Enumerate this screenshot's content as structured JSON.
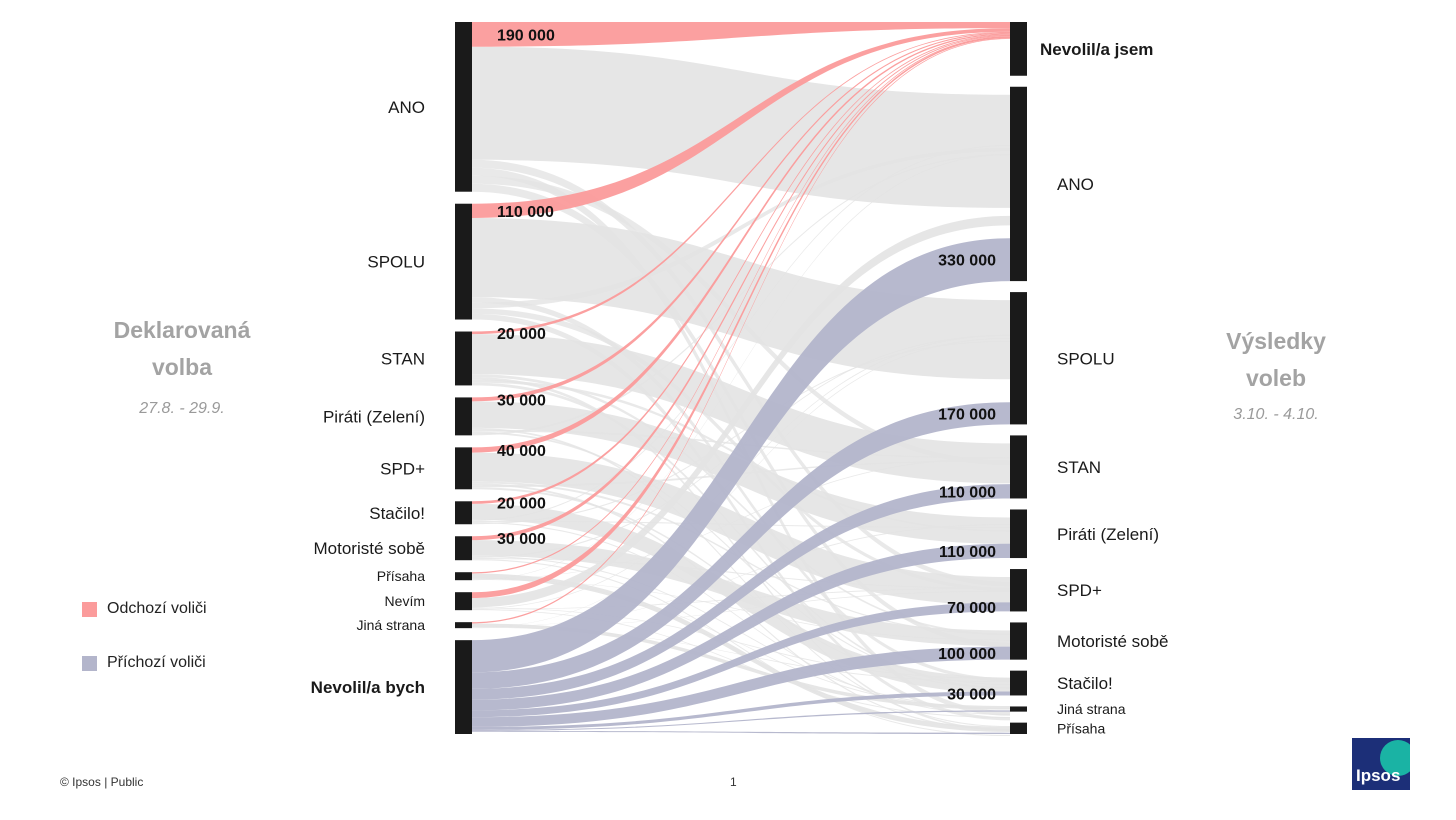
{
  "left_panel": {
    "title_line1": "Deklarovaná",
    "title_line2": "volba",
    "date": "27.8. - 29.9."
  },
  "right_panel": {
    "title_line1": "Výsledky",
    "title_line2": "voleb",
    "date": "3.10. - 4.10."
  },
  "legend": {
    "outgoing": "Odchozí voliči",
    "incoming": "Příchozí voliči"
  },
  "footer": {
    "copyright": "© Ipsos | Public",
    "page": "1"
  },
  "logo_text": "Ipsos",
  "colors": {
    "outgoing": "#fb9b9b",
    "incoming": "#b3b5cb",
    "neutral": "#e3e3e3",
    "node": "#1a1a1a",
    "muted_title": "#a3a3a3"
  },
  "chart_data": {
    "type": "sankey",
    "left_nodes": [
      {
        "label": "ANO",
        "value": 850
      },
      {
        "label": "SPOLU",
        "value": 580
      },
      {
        "label": "STAN",
        "value": 270
      },
      {
        "label": "Piráti (Zelení)",
        "value": 190
      },
      {
        "label": "SPD+",
        "value": 210
      },
      {
        "label": "Stačilo!",
        "value": 115
      },
      {
        "label": "Motoristé sobě",
        "value": 120
      },
      {
        "label": "Přísaha",
        "value": 40
      },
      {
        "label": "Nevím",
        "value": 90
      },
      {
        "label": "Jiná strana",
        "value": 30
      },
      {
        "label": "Nevolil/a bych",
        "value": 470,
        "bold": true
      }
    ],
    "right_nodes": [
      {
        "label": "Nevolil/a jsem",
        "value": 260,
        "bold": true
      },
      {
        "label": "ANO",
        "value": 940
      },
      {
        "label": "SPOLU",
        "value": 640
      },
      {
        "label": "STAN",
        "value": 305
      },
      {
        "label": "Piráti (Zelení)",
        "value": 235
      },
      {
        "label": "SPD+",
        "value": 205
      },
      {
        "label": "Motoristé sobě",
        "value": 180
      },
      {
        "label": "Stačilo!",
        "value": 120
      },
      {
        "label": "Jiná strana",
        "value": 25
      },
      {
        "label": "Přísaha",
        "value": 55
      }
    ],
    "outgoing_labels": [
      "190 000",
      "110 000",
      "20 000",
      "30 000",
      "40 000",
      "20 000",
      "30 000"
    ],
    "incoming_labels": [
      "330 000",
      "170 000",
      "110 000",
      "110 000",
      "70 000",
      "100 000",
      "30 000"
    ],
    "outgoing_flows": [
      {
        "from": "ANO",
        "to": "Nevolil/a jsem",
        "value": 190000,
        "label": "190 000"
      },
      {
        "from": "SPOLU",
        "to": "Nevolil/a jsem",
        "value": 110000,
        "label": "110 000"
      },
      {
        "from": "STAN",
        "to": "Nevolil/a jsem",
        "value": 20000,
        "label": "20 000"
      },
      {
        "from": "Piráti (Zelení)",
        "to": "Nevolil/a jsem",
        "value": 30000,
        "label": "30 000"
      },
      {
        "from": "SPD+",
        "to": "Nevolil/a jsem",
        "value": 40000,
        "label": "40 000"
      },
      {
        "from": "Stačilo!",
        "to": "Nevolil/a jsem",
        "value": 20000,
        "label": "20 000"
      },
      {
        "from": "Motoristé sobě",
        "to": "Nevolil/a jsem",
        "value": 30000,
        "label": "30 000"
      },
      {
        "from": "Přísaha",
        "to": "Nevolil/a jsem",
        "value": 5000
      },
      {
        "from": "Nevím",
        "to": "Nevolil/a jsem",
        "value": 45000
      },
      {
        "from": "Jiná strana",
        "to": "Nevolil/a jsem",
        "value": 5000
      }
    ],
    "incoming_flows": [
      {
        "from": "Nevolil/a bych",
        "to": "ANO",
        "value": 330000,
        "label": "330 000"
      },
      {
        "from": "Nevolil/a bych",
        "to": "SPOLU",
        "value": 170000,
        "label": "170 000"
      },
      {
        "from": "Nevolil/a bych",
        "to": "STAN",
        "value": 110000,
        "label": "110 000"
      },
      {
        "from": "Nevolil/a bych",
        "to": "Piráti (Zelení)",
        "value": 110000,
        "label": "110 000"
      },
      {
        "from": "Nevolil/a bych",
        "to": "SPD+",
        "value": 70000,
        "label": "70 000"
      },
      {
        "from": "Nevolil/a bych",
        "to": "Motoristé sobě",
        "value": 100000,
        "label": "100 000"
      },
      {
        "from": "Nevolil/a bych",
        "to": "Stačilo!",
        "value": 30000,
        "label": "30 000"
      },
      {
        "from": "Nevolil/a bych",
        "to": "Jiná strana",
        "value": 5000
      },
      {
        "from": "Nevolil/a bych",
        "to": "Přísaha",
        "value": 5000
      }
    ]
  }
}
